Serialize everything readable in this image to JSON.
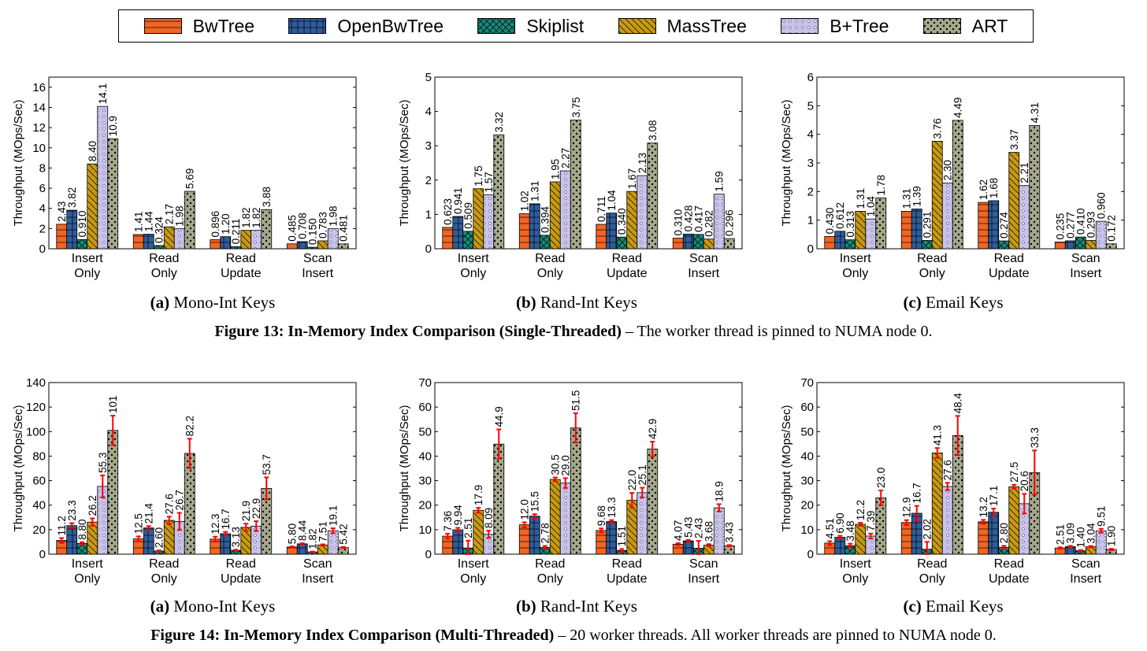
{
  "legend": [
    {
      "name": "BwTree",
      "color": "#f26522",
      "pattern": "hlines"
    },
    {
      "name": "OpenBwTree",
      "color": "#2f5d9b",
      "pattern": "grid"
    },
    {
      "name": "Skiplist",
      "color": "#148a7a",
      "pattern": "cross"
    },
    {
      "name": "MassTree",
      "color": "#c79a12",
      "pattern": "diag"
    },
    {
      "name": "B+Tree",
      "color": "#c8c2ee",
      "pattern": "stars"
    },
    {
      "name": "ART",
      "color": "#a6a88c",
      "pattern": "dots"
    }
  ],
  "figure13": {
    "caption_label": "Figure 13: In-Memory Index Comparison (Single-Threaded)",
    "caption_text": " – The worker thread is pinned to NUMA node 0.",
    "subcaptions": [
      {
        "label": "(a)",
        "text": " Mono-Int Keys"
      },
      {
        "label": "(b)",
        "text": " Rand-Int Keys"
      },
      {
        "label": "(c)",
        "text": " Email Keys"
      }
    ]
  },
  "figure14": {
    "caption_label": "Figure 14: In-Memory Index Comparison (Multi-Threaded)",
    "caption_text": " – 20 worker threads. All worker threads are pinned to NUMA node 0.",
    "subcaptions": [
      {
        "label": "(a)",
        "text": " Mono-Int Keys"
      },
      {
        "label": "(b)",
        "text": " Rand-Int Keys"
      },
      {
        "label": "(c)",
        "text": " Email Keys"
      }
    ]
  },
  "chart_data": [
    {
      "type": "bar",
      "figure": "13a",
      "ylabel": "Throughput (MOps/Sec)",
      "ylim": [
        0,
        17
      ],
      "yticks": [
        0,
        2,
        4,
        6,
        8,
        10,
        12,
        14,
        16
      ],
      "categories": [
        [
          "Insert",
          "Only"
        ],
        [
          "Read",
          "Only"
        ],
        [
          "Read",
          "Update"
        ],
        [
          "Scan",
          "Insert"
        ]
      ],
      "series": [
        {
          "name": "BwTree",
          "values": [
            2.43,
            1.41,
            0.896,
            0.485
          ],
          "labels": [
            "2.43",
            "1.41",
            "0.896",
            "0.485"
          ]
        },
        {
          "name": "OpenBwTree",
          "values": [
            3.82,
            1.44,
            1.2,
            0.708
          ],
          "labels": [
            "3.82",
            "1.44",
            "1.20",
            "0.708"
          ]
        },
        {
          "name": "Skiplist",
          "values": [
            0.91,
            0.324,
            0.211,
            0.15
          ],
          "labels": [
            "0.910",
            "0.324",
            "0.211",
            "0.150"
          ]
        },
        {
          "name": "MassTree",
          "values": [
            8.4,
            2.17,
            1.82,
            0.783
          ],
          "labels": [
            "8.40",
            "2.17",
            "1.82",
            "0.783"
          ]
        },
        {
          "name": "B+Tree",
          "values": [
            14.1,
            1.98,
            1.82,
            1.98
          ],
          "labels": [
            "14.1",
            "1.98",
            "1.82",
            "1.98"
          ]
        },
        {
          "name": "ART",
          "values": [
            10.9,
            5.69,
            3.88,
            0.481
          ],
          "labels": [
            "10.9",
            "5.69",
            "3.88",
            "0.481"
          ]
        }
      ]
    },
    {
      "type": "bar",
      "figure": "13b",
      "ylabel": "Throughput (MOps/Sec)",
      "ylim": [
        0,
        5
      ],
      "yticks": [
        0,
        1,
        2,
        3,
        4,
        5
      ],
      "categories": [
        [
          "Insert",
          "Only"
        ],
        [
          "Read",
          "Only"
        ],
        [
          "Read",
          "Update"
        ],
        [
          "Scan",
          "Insert"
        ]
      ],
      "series": [
        {
          "name": "BwTree",
          "values": [
            0.623,
            1.02,
            0.711,
            0.31
          ],
          "labels": [
            "0.623",
            "1.02",
            "0.711",
            "0.310"
          ]
        },
        {
          "name": "OpenBwTree",
          "values": [
            0.941,
            1.31,
            1.04,
            0.428
          ],
          "labels": [
            "0.941",
            "1.31",
            "1.04",
            "0.428"
          ]
        },
        {
          "name": "Skiplist",
          "values": [
            0.509,
            0.394,
            0.34,
            0.417
          ],
          "labels": [
            "0.509",
            "0.394",
            "0.340",
            "0.417"
          ]
        },
        {
          "name": "MassTree",
          "values": [
            1.75,
            1.95,
            1.67,
            0.282
          ],
          "labels": [
            "1.75",
            "1.95",
            "1.67",
            "0.282"
          ]
        },
        {
          "name": "B+Tree",
          "values": [
            1.57,
            2.27,
            2.13,
            1.59
          ],
          "labels": [
            "1.57",
            "2.27",
            "2.13",
            "1.59"
          ]
        },
        {
          "name": "ART",
          "values": [
            3.32,
            3.75,
            3.08,
            0.296
          ],
          "labels": [
            "3.32",
            "3.75",
            "3.08",
            "0.296"
          ]
        }
      ]
    },
    {
      "type": "bar",
      "figure": "13c",
      "ylabel": "Throughput (MOps/Sec)",
      "ylim": [
        0,
        6
      ],
      "yticks": [
        0,
        1,
        2,
        3,
        4,
        5,
        6
      ],
      "categories": [
        [
          "Insert",
          "Only"
        ],
        [
          "Read",
          "Only"
        ],
        [
          "Read",
          "Update"
        ],
        [
          "Scan",
          "Insert"
        ]
      ],
      "series": [
        {
          "name": "BwTree",
          "values": [
            0.43,
            1.31,
            1.62,
            0.235
          ],
          "labels": [
            "0.430",
            "1.31",
            "1.62",
            "0.235"
          ]
        },
        {
          "name": "OpenBwTree",
          "values": [
            0.612,
            1.39,
            1.68,
            0.277
          ],
          "labels": [
            "0.612",
            "1.39",
            "1.68",
            "0.277"
          ]
        },
        {
          "name": "Skiplist",
          "values": [
            0.313,
            0.291,
            0.274,
            0.41
          ],
          "labels": [
            "0.313",
            "0.291",
            "0.274",
            "0.410"
          ]
        },
        {
          "name": "MassTree",
          "values": [
            1.31,
            3.76,
            3.37,
            0.293
          ],
          "labels": [
            "1.31",
            "3.76",
            "3.37",
            "0.293"
          ]
        },
        {
          "name": "B+Tree",
          "values": [
            1.04,
            2.3,
            2.21,
            0.96
          ],
          "labels": [
            "1.04",
            "2.30",
            "2.21",
            "0.960"
          ]
        },
        {
          "name": "ART",
          "values": [
            1.78,
            4.49,
            4.31,
            0.172
          ],
          "labels": [
            "1.78",
            "4.49",
            "4.31",
            "0.172"
          ]
        }
      ]
    },
    {
      "type": "bar",
      "figure": "14a",
      "ylabel": "Throughput (MOps/Sec)",
      "ylim": [
        0,
        140
      ],
      "yticks": [
        0,
        20,
        40,
        60,
        80,
        100,
        120,
        140
      ],
      "categories": [
        [
          "Insert",
          "Only"
        ],
        [
          "Read",
          "Only"
        ],
        [
          "Read",
          "Update"
        ],
        [
          "Scan",
          "Insert"
        ]
      ],
      "series": [
        {
          "name": "BwTree",
          "values": [
            11.2,
            12.5,
            12.3,
            5.8
          ],
          "labels": [
            "11.2",
            "12.5",
            "12.3",
            "5.80"
          ],
          "err": [
            2,
            2,
            2,
            0.5
          ]
        },
        {
          "name": "OpenBwTree",
          "values": [
            23.3,
            21.4,
            16.7,
            8.44
          ],
          "labels": [
            "23.3",
            "21.4",
            "16.7",
            "8.44"
          ],
          "err": [
            2,
            1.5,
            1.5,
            0.5
          ]
        },
        {
          "name": "Skiplist",
          "values": [
            8.8,
            2.6,
            3.13,
            1.82
          ],
          "labels": [
            "8.80",
            "2.60",
            "3.13",
            "1.82"
          ],
          "err": [
            1,
            0.5,
            0.5,
            0.3
          ]
        },
        {
          "name": "MassTree",
          "values": [
            26.2,
            27.6,
            21.9,
            7.51
          ],
          "labels": [
            "26.2",
            "27.6",
            "21.9",
            "7.51"
          ],
          "err": [
            3,
            3,
            3,
            0.5
          ]
        },
        {
          "name": "B+Tree",
          "values": [
            55.3,
            26.7,
            22.9,
            19.1
          ],
          "labels": [
            "55.3",
            "26.7",
            "22.9",
            "19.1"
          ],
          "err": [
            9,
            7,
            4,
            2
          ]
        },
        {
          "name": "ART",
          "values": [
            101,
            82.2,
            53.7,
            5.42
          ],
          "labels": [
            "101",
            "82.2",
            "53.7",
            "5.42"
          ],
          "err": [
            12,
            12,
            9,
            0.5
          ]
        }
      ]
    },
    {
      "type": "bar",
      "figure": "14b",
      "ylabel": "Throughput (MOps/Sec)",
      "ylim": [
        0,
        70
      ],
      "yticks": [
        0,
        10,
        20,
        30,
        40,
        50,
        60,
        70
      ],
      "categories": [
        [
          "Insert",
          "Only"
        ],
        [
          "Read",
          "Only"
        ],
        [
          "Read",
          "Update"
        ],
        [
          "Scan",
          "Insert"
        ]
      ],
      "series": [
        {
          "name": "BwTree",
          "values": [
            7.36,
            12.0,
            9.68,
            4.07
          ],
          "labels": [
            "7.36",
            "12.0",
            "9.68",
            "4.07"
          ],
          "err": [
            1,
            1,
            0.8,
            0.4
          ]
        },
        {
          "name": "OpenBwTree",
          "values": [
            9.94,
            15.5,
            13.3,
            5.43
          ],
          "labels": [
            "9.94",
            "15.5",
            "13.3",
            "5.43"
          ],
          "err": [
            0.8,
            0.8,
            0.6,
            0.4
          ]
        },
        {
          "name": "Skiplist",
          "values": [
            2.51,
            2.78,
            1.51,
            2.43
          ],
          "labels": [
            "2.51",
            "2.78",
            "1.51",
            "2.43"
          ],
          "err": [
            3,
            0.6,
            0.6,
            3
          ]
        },
        {
          "name": "MassTree",
          "values": [
            17.9,
            30.5,
            22.0,
            3.68
          ],
          "labels": [
            "17.9",
            "30.5",
            "22.0",
            "3.68"
          ],
          "err": [
            1,
            0.8,
            3,
            0.4
          ]
        },
        {
          "name": "B+Tree",
          "values": [
            8.09,
            29.0,
            25.1,
            18.9
          ],
          "labels": [
            "8.09",
            "29.0",
            "25.1",
            "18.9"
          ],
          "err": [
            1.5,
            2,
            2,
            1.5
          ]
        },
        {
          "name": "ART",
          "values": [
            44.9,
            51.5,
            42.9,
            3.43
          ],
          "labels": [
            "44.9",
            "51.5",
            "42.9",
            "3.43"
          ],
          "err": [
            6,
            6,
            3,
            0.3
          ]
        }
      ]
    },
    {
      "type": "bar",
      "figure": "14c",
      "ylabel": "Throughput (MOps/Sec)",
      "ylim": [
        0,
        70
      ],
      "yticks": [
        0,
        10,
        20,
        30,
        40,
        50,
        60,
        70
      ],
      "categories": [
        [
          "Insert",
          "Only"
        ],
        [
          "Read",
          "Only"
        ],
        [
          "Read",
          "Update"
        ],
        [
          "Scan",
          "Insert"
        ]
      ],
      "series": [
        {
          "name": "BwTree",
          "values": [
            4.51,
            12.9,
            13.2,
            2.51
          ],
          "labels": [
            "4.51",
            "12.9",
            "13.2",
            "2.51"
          ],
          "err": [
            0.8,
            1,
            0.8,
            0.3
          ]
        },
        {
          "name": "OpenBwTree",
          "values": [
            6.9,
            16.7,
            17.1,
            3.09
          ],
          "labels": [
            "6.90",
            "16.7",
            "17.1",
            "3.09"
          ],
          "err": [
            0.6,
            3,
            1.5,
            0.3
          ]
        },
        {
          "name": "Skiplist",
          "values": [
            3.48,
            2.02,
            2.8,
            1.4
          ],
          "labels": [
            "3.48",
            "2.02",
            "2.80",
            "1.40"
          ],
          "err": [
            0.8,
            3,
            0.6,
            0.3
          ]
        },
        {
          "name": "MassTree",
          "values": [
            12.2,
            41.3,
            27.5,
            3.04
          ],
          "labels": [
            "12.2",
            "41.3",
            "27.5",
            "3.04"
          ],
          "err": [
            0.6,
            2,
            0.8,
            0.3
          ]
        },
        {
          "name": "B+Tree",
          "values": [
            7.39,
            27.6,
            20.6,
            9.51
          ],
          "labels": [
            "7.39",
            "27.6",
            "20.6",
            "9.51"
          ],
          "err": [
            1,
            1.5,
            4,
            0.8
          ]
        },
        {
          "name": "ART",
          "values": [
            23.0,
            48.4,
            33.3,
            1.9
          ],
          "labels": [
            "23.0",
            "48.4",
            "33.3",
            "1.90"
          ],
          "err": [
            3,
            8,
            9,
            0.3
          ]
        }
      ]
    }
  ]
}
